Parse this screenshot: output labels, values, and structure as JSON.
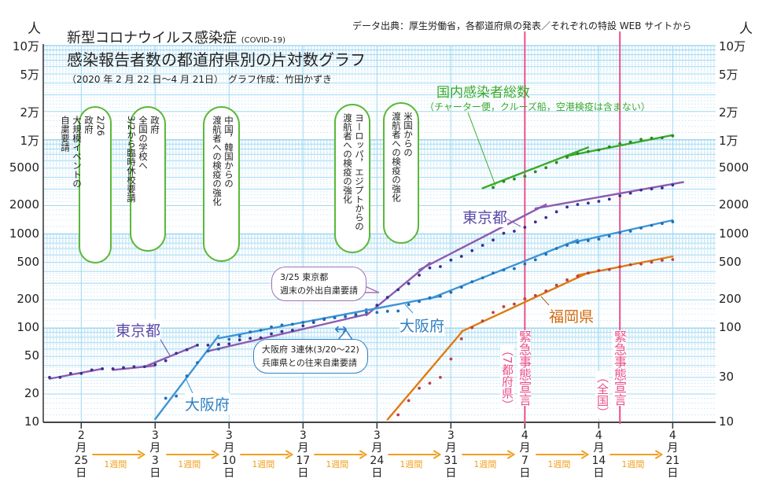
{
  "header": {
    "title_line1": "新型コロナウイルス感染症",
    "title_line1_note": "(COVID-19)",
    "title_line2": "感染報告者数の都道府県別の片対数グラフ",
    "subtitle": "（2020 年 2 月 22 日〜4 月 21日）　グラフ作成：竹田かずき",
    "source": "データ出典：厚生労働省，各都道府県の発表／それぞれの特設 WEB サイトから"
  },
  "annotations": {
    "callouts_green": [
      {
        "date": "2/26",
        "text": [
          "2/26",
          "政府",
          "大規模イベントの",
          "自粛要請"
        ]
      },
      {
        "date": "3/2",
        "text": [
          "政府",
          "全国の学校へ",
          "3/2から臨時休校要請"
        ]
      },
      {
        "text": [
          "中国，韓国からの",
          "渡航者への検疫の強化"
        ]
      },
      {
        "text": [
          "ヨーロッパ，エジプトからの",
          "渡航者への検疫の強化"
        ]
      },
      {
        "text": [
          "米国からの",
          "渡航者への検疫の強化"
        ]
      }
    ],
    "tokyo_callout": [
      "3/25 東京都",
      "週末の外出自粛要請"
    ],
    "osaka_callout": [
      "大阪府 3連休(3/20〜22)",
      "兵庫県との往来自粛要請"
    ],
    "osaka_arrow": "↔",
    "emergency": [
      {
        "date": "4/7",
        "text": "緊急事態宣言",
        "scope": "（7都府県）"
      },
      {
        "date": "4/16",
        "text": "緊急事態宣言",
        "scope": "（全国）"
      }
    ],
    "national_label": "国内感染者総数",
    "national_note": "（チャーター便，クルーズ船，空港検疫は含まない）",
    "week_label": "1週間"
  },
  "colors": {
    "tokyo": "#8e5bb0",
    "osaka": "#3f95d6",
    "fukuoka": "#e07a10",
    "national": "#3aaa2a",
    "emergency": "#e8508a",
    "grid": "#9fd8f2",
    "week_arrow": "#f0a020",
    "tokyo_label": "#5a4aa8",
    "osaka_label": "#2f7fc4"
  },
  "chart_data": {
    "type": "line",
    "y_scale": "log",
    "ylim": [
      10,
      100000
    ],
    "y_unit": "人",
    "xlim": [
      "2/22",
      "4/23"
    ],
    "yticks_left": [
      "10万",
      "5万",
      "2万",
      "1万",
      "5000",
      "2000",
      "1000",
      "500",
      "200",
      "100",
      "50",
      "20",
      "10"
    ],
    "yticks_left_values": [
      100000,
      50000,
      20000,
      10000,
      5000,
      2000,
      1000,
      500,
      200,
      100,
      50,
      20,
      10
    ],
    "yticks_right": [
      "10万",
      "5万",
      "2万",
      "1万",
      "5000",
      "2000",
      "1000",
      "500",
      "200",
      "100",
      "30",
      "10"
    ],
    "yticks_right_values": [
      100000,
      50000,
      20000,
      10000,
      5000,
      2000,
      1000,
      500,
      200,
      100,
      30,
      10
    ],
    "xticks": [
      {
        "date": "2/25",
        "month": "2",
        "day": "25"
      },
      {
        "date": "3/3",
        "month": "3",
        "day": "3"
      },
      {
        "date": "3/10",
        "month": "3",
        "day": "10"
      },
      {
        "date": "3/17",
        "month": "3",
        "day": "17"
      },
      {
        "date": "3/24",
        "month": "3",
        "day": "24"
      },
      {
        "date": "3/31",
        "month": "3",
        "day": "31"
      },
      {
        "date": "4/7",
        "month": "4",
        "day": "7"
      },
      {
        "date": "4/14",
        "month": "4",
        "day": "14"
      },
      {
        "date": "4/21",
        "month": "4",
        "day": "21"
      }
    ],
    "month_char": "月",
    "day_char": "日",
    "grid": true,
    "series": [
      {
        "name": "東京都",
        "key": "tokyo",
        "points": [
          [
            "2/22",
            30
          ],
          [
            "2/23",
            30
          ],
          [
            "2/24",
            33
          ],
          [
            "2/25",
            33
          ],
          [
            "2/26",
            36
          ],
          [
            "2/27",
            37
          ],
          [
            "2/28",
            37
          ],
          [
            "2/29",
            38
          ],
          [
            "3/1",
            39
          ],
          [
            "3/2",
            39
          ],
          [
            "3/3",
            41
          ],
          [
            "3/4",
            45
          ],
          [
            "3/5",
            54
          ],
          [
            "3/6",
            59
          ],
          [
            "3/7",
            66
          ],
          [
            "3/8",
            66
          ],
          [
            "3/9",
            67
          ],
          [
            "3/10",
            68
          ],
          [
            "3/11",
            75
          ],
          [
            "3/12",
            78
          ],
          [
            "3/13",
            79
          ],
          [
            "3/14",
            87
          ],
          [
            "3/15",
            92
          ],
          [
            "3/16",
            95
          ],
          [
            "3/17",
            106
          ],
          [
            "3/18",
            115
          ],
          [
            "3/19",
            124
          ],
          [
            "3/20",
            129
          ],
          [
            "3/21",
            139
          ],
          [
            "3/22",
            139
          ],
          [
            "3/23",
            156
          ],
          [
            "3/24",
            175
          ],
          [
            "3/25",
            212
          ],
          [
            "3/26",
            256
          ],
          [
            "3/27",
            297
          ],
          [
            "3/28",
            365
          ],
          [
            "3/29",
            436
          ],
          [
            "3/30",
            450
          ],
          [
            "3/31",
            528
          ],
          [
            "4/1",
            578
          ],
          [
            "4/2",
            665
          ],
          [
            "4/3",
            757
          ],
          [
            "4/4",
            861
          ],
          [
            "4/5",
            1016
          ],
          [
            "4/6",
            1069
          ],
          [
            "4/7",
            1178
          ],
          [
            "4/8",
            1340
          ],
          [
            "4/9",
            1493
          ],
          [
            "4/10",
            1719
          ],
          [
            "4/11",
            1931
          ],
          [
            "4/12",
            2058
          ],
          [
            "4/13",
            2125
          ],
          [
            "4/14",
            2221
          ],
          [
            "4/15",
            2341
          ],
          [
            "4/16",
            2542
          ],
          [
            "4/17",
            2709
          ],
          [
            "4/18",
            2927
          ],
          [
            "4/19",
            3005
          ],
          [
            "4/20",
            3082
          ],
          [
            "4/21",
            3307
          ]
        ],
        "trends": [
          [
            [
              "2/22",
              29
            ],
            [
              "2/27",
              37
            ]
          ],
          [
            [
              "2/28",
              36
            ],
            [
              "3/3",
              40
            ]
          ],
          [
            [
              "3/2",
              39
            ],
            [
              "3/7",
              66
            ]
          ],
          [
            [
              "3/8",
              57
            ],
            [
              "3/23",
              140
            ]
          ],
          [
            [
              "3/23",
              137
            ],
            [
              "3/29",
              493
            ]
          ],
          [
            [
              "3/28",
              415
            ],
            [
              "4/9",
              2055
            ]
          ],
          [
            [
              "4/8",
              1866
            ],
            [
              "4/22",
              3550
            ]
          ]
        ]
      },
      {
        "name": "大阪府",
        "key": "osaka",
        "points": [
          [
            "3/4",
            18
          ],
          [
            "3/5",
            19
          ],
          [
            "3/6",
            31
          ],
          [
            "3/7",
            43
          ],
          [
            "3/8",
            57
          ],
          [
            "3/9",
            60
          ],
          [
            "3/10",
            76
          ],
          [
            "3/11",
            82
          ],
          [
            "3/12",
            91
          ],
          [
            "3/13",
            95
          ],
          [
            "3/14",
            103
          ],
          [
            "3/15",
            108
          ],
          [
            "3/16",
            110
          ],
          [
            "3/17",
            115
          ],
          [
            "3/18",
            119
          ],
          [
            "3/19",
            126
          ],
          [
            "3/20",
            129
          ],
          [
            "3/21",
            132
          ],
          [
            "3/22",
            135
          ],
          [
            "3/23",
            147
          ],
          [
            "3/24",
            147
          ],
          [
            "3/25",
            151
          ],
          [
            "3/26",
            152
          ],
          [
            "3/27",
            178
          ],
          [
            "3/28",
            192
          ],
          [
            "3/29",
            210
          ],
          [
            "3/30",
            218
          ],
          [
            "3/31",
            240
          ],
          [
            "4/1",
            272
          ],
          [
            "4/2",
            311
          ],
          [
            "4/3",
            342
          ],
          [
            "4/4",
            384
          ],
          [
            "4/5",
            415
          ],
          [
            "4/6",
            428
          ],
          [
            "4/7",
            480
          ],
          [
            "4/8",
            532
          ],
          [
            "4/9",
            609
          ],
          [
            "4/10",
            701
          ],
          [
            "4/11",
            757
          ],
          [
            "4/12",
            813
          ],
          [
            "4/13",
            850
          ],
          [
            "4/14",
            883
          ],
          [
            "4/15",
            948
          ],
          [
            "4/16",
            1030
          ],
          [
            "4/17",
            1070
          ],
          [
            "4/18",
            1155
          ],
          [
            "4/19",
            1232
          ],
          [
            "4/20",
            1290
          ],
          [
            "4/21",
            1346
          ]
        ],
        "trends": [
          [
            [
              "3/3",
              10.8
            ],
            [
              "3/9",
              83
            ]
          ],
          [
            [
              "3/9",
              78
            ],
            [
              "3/30",
              218
            ]
          ],
          [
            [
              "3/29",
              205
            ],
            [
              "4/12",
              865
            ]
          ],
          [
            [
              "4/11",
              787
            ],
            [
              "4/21",
              1400
            ]
          ]
        ]
      },
      {
        "name": "福岡県",
        "key": "fukuoka",
        "points": [
          [
            "3/26",
            12
          ],
          [
            "3/27",
            17
          ],
          [
            "3/28",
            23
          ],
          [
            "3/29",
            26
          ],
          [
            "3/30",
            30
          ],
          [
            "3/31",
            47
          ],
          [
            "4/1",
            77
          ],
          [
            "4/2",
            101
          ],
          [
            "4/3",
            119
          ],
          [
            "4/4",
            147
          ],
          [
            "4/5",
            169
          ],
          [
            "4/6",
            180
          ],
          [
            "4/7",
            205
          ],
          [
            "4/8",
            222
          ],
          [
            "4/9",
            248
          ],
          [
            "4/10",
            285
          ],
          [
            "4/11",
            325
          ],
          [
            "4/12",
            356
          ],
          [
            "4/13",
            384
          ],
          [
            "4/14",
            409
          ],
          [
            "4/15",
            419
          ],
          [
            "4/16",
            448
          ],
          [
            "4/17",
            471
          ],
          [
            "4/18",
            480
          ],
          [
            "4/19",
            502
          ],
          [
            "4/20",
            525
          ],
          [
            "4/21",
            535
          ]
        ],
        "trends": [
          [
            [
              "3/25",
              10.7
            ],
            [
              "4/1",
              90
            ]
          ],
          [
            [
              "4/1",
              92
            ],
            [
              "4/13",
              388
            ]
          ],
          [
            [
              "4/12",
              365
            ],
            [
              "4/21",
              578
            ]
          ]
        ]
      },
      {
        "name": "国内感染者総数",
        "key": "national",
        "points": [
          [
            "4/4",
            3120
          ],
          [
            "4/5",
            3610
          ],
          [
            "4/6",
            3830
          ],
          [
            "4/7",
            4110
          ],
          [
            "4/8",
            4580
          ],
          [
            "4/9",
            5050
          ],
          [
            "4/10",
            5730
          ],
          [
            "4/11",
            6520
          ],
          [
            "4/12",
            7130
          ],
          [
            "4/13",
            7500
          ],
          [
            "4/14",
            7800
          ],
          [
            "4/15",
            8420
          ],
          [
            "4/16",
            9100
          ],
          [
            "4/17",
            9450
          ],
          [
            "4/18",
            10100
          ],
          [
            "4/19",
            10400
          ],
          [
            "4/20",
            10500
          ],
          [
            "4/21",
            11000
          ]
        ],
        "trends": [
          [
            [
              "4/3",
              3060
            ],
            [
              "4/13",
              8320
            ]
          ],
          [
            [
              "4/11",
              6730
            ],
            [
              "4/21",
              11220
            ]
          ]
        ]
      }
    ]
  }
}
